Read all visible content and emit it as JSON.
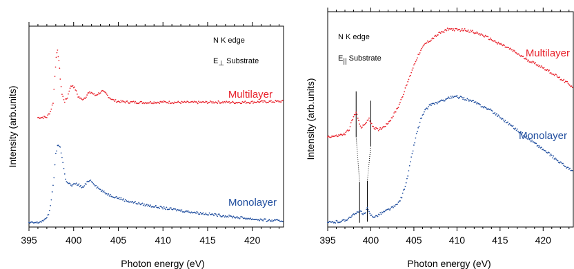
{
  "colors": {
    "multilayer": "#e8202a",
    "monolayer": "#1f4d9e",
    "axis": "#000000"
  },
  "chart_data": [
    {
      "type": "scatter",
      "panel": "left",
      "title": "",
      "xlabel": "Photon energy (eV)",
      "ylabel": "Intensity (arb.units)",
      "xlim": [
        395,
        423.5
      ],
      "ylim": [
        0,
        1
      ],
      "x_ticks": [
        395,
        400,
        405,
        410,
        415,
        420
      ],
      "x_tick_labels": [
        "395",
        "400",
        "405",
        "410",
        "415",
        "420"
      ],
      "annotations": {
        "edge": "N  K edge",
        "pol_prefix": "E",
        "pol_sub": "⊥",
        "pol_suffix": " Substrate"
      },
      "grid": false,
      "series": [
        {
          "name": "Multilayer",
          "color": "#e8202a",
          "x": [
            396.0,
            397.0,
            397.4,
            397.7,
            397.9,
            398.05,
            398.2,
            398.35,
            398.5,
            398.7,
            399.0,
            399.3,
            399.6,
            399.9,
            400.2,
            400.5,
            400.9,
            401.3,
            401.6,
            402.0,
            402.4,
            402.8,
            403.2,
            403.6,
            404.0,
            404.5,
            405.0,
            406.0,
            408.0,
            410.0,
            412.0,
            414.0,
            416.0,
            418.0,
            420.0,
            422.0,
            423.5
          ],
          "y": [
            0.545,
            0.547,
            0.575,
            0.62,
            0.75,
            0.85,
            0.875,
            0.83,
            0.74,
            0.66,
            0.625,
            0.645,
            0.695,
            0.705,
            0.685,
            0.65,
            0.635,
            0.645,
            0.665,
            0.67,
            0.655,
            0.665,
            0.675,
            0.665,
            0.645,
            0.63,
            0.625,
            0.622,
            0.62,
            0.622,
            0.62,
            0.62,
            0.622,
            0.62,
            0.622,
            0.624,
            0.625
          ]
        },
        {
          "name": "Monolayer",
          "color": "#1f4d9e",
          "x": [
            395.0,
            396.0,
            396.8,
            397.2,
            397.5,
            397.8,
            398.0,
            398.2,
            398.5,
            398.8,
            399.1,
            399.4,
            399.8,
            400.2,
            400.6,
            401.0,
            401.4,
            401.8,
            402.2,
            402.6,
            403.0,
            403.5,
            404.0,
            405.0,
            406.0,
            407.0,
            408.0,
            410.0,
            412.0,
            414.0,
            416.0,
            418.0,
            420.0,
            422.0,
            423.5
          ],
          "y": [
            0.02,
            0.022,
            0.035,
            0.065,
            0.13,
            0.25,
            0.36,
            0.405,
            0.4,
            0.32,
            0.235,
            0.22,
            0.205,
            0.215,
            0.21,
            0.195,
            0.215,
            0.235,
            0.22,
            0.2,
            0.185,
            0.17,
            0.16,
            0.145,
            0.13,
            0.12,
            0.11,
            0.095,
            0.082,
            0.07,
            0.06,
            0.05,
            0.04,
            0.032,
            0.03
          ]
        }
      ]
    },
    {
      "type": "scatter",
      "panel": "right",
      "title": "",
      "xlabel": "Photon energy (eV)",
      "ylabel": "Intensity (arb.units)",
      "xlim": [
        395,
        423.5
      ],
      "ylim": [
        0,
        1
      ],
      "x_ticks": [
        395,
        400,
        405,
        410,
        415,
        420
      ],
      "x_tick_labels": [
        "395",
        "400",
        "405",
        "410",
        "415",
        "420"
      ],
      "annotations": {
        "edge": "N  K edge",
        "pol_prefix": "E",
        "pol_sub": "||",
        "pol_suffix": " Substrate"
      },
      "markers_multilayer": [
        398.3,
        400.0
      ],
      "markers_monolayer": [
        398.7,
        399.6
      ],
      "grid": false,
      "series": [
        {
          "name": "Multilayer",
          "color": "#e8202a",
          "x": [
            395.0,
            396.0,
            397.0,
            397.5,
            397.8,
            398.1,
            398.3,
            398.6,
            398.9,
            399.2,
            399.5,
            399.8,
            400.1,
            400.4,
            400.8,
            401.2,
            401.8,
            402.5,
            403.2,
            404.0,
            404.8,
            405.5,
            406.3,
            407.0,
            408.0,
            409.0,
            410.0,
            411.0,
            412.0,
            413.0,
            414.0,
            415.0,
            416.0,
            417.0,
            418.0,
            419.0,
            420.0,
            421.0,
            422.0,
            423.0,
            423.5
          ],
          "y": [
            0.42,
            0.422,
            0.432,
            0.455,
            0.49,
            0.52,
            0.53,
            0.495,
            0.462,
            0.47,
            0.49,
            0.5,
            0.48,
            0.46,
            0.452,
            0.458,
            0.475,
            0.51,
            0.56,
            0.64,
            0.73,
            0.8,
            0.85,
            0.87,
            0.9,
            0.92,
            0.915,
            0.915,
            0.905,
            0.89,
            0.87,
            0.85,
            0.83,
            0.805,
            0.78,
            0.76,
            0.74,
            0.715,
            0.69,
            0.665,
            0.645
          ]
        },
        {
          "name": "Monolayer",
          "color": "#1f4d9e",
          "x": [
            395.0,
            396.0,
            397.0,
            397.5,
            398.0,
            398.4,
            398.7,
            399.0,
            399.3,
            399.6,
            399.9,
            400.2,
            400.6,
            401.0,
            402.0,
            403.0,
            403.6,
            404.2,
            404.8,
            405.3,
            405.8,
            406.3,
            407.0,
            408.0,
            409.0,
            410.0,
            411.0,
            412.0,
            413.0,
            414.0,
            415.0,
            416.0,
            417.0,
            418.0,
            419.0,
            420.0,
            421.0,
            422.0,
            423.0,
            423.5
          ],
          "y": [
            0.02,
            0.024,
            0.03,
            0.045,
            0.055,
            0.065,
            0.08,
            0.06,
            0.06,
            0.085,
            0.06,
            0.05,
            0.05,
            0.06,
            0.08,
            0.1,
            0.14,
            0.22,
            0.34,
            0.43,
            0.5,
            0.54,
            0.57,
            0.58,
            0.6,
            0.605,
            0.595,
            0.58,
            0.56,
            0.54,
            0.51,
            0.48,
            0.45,
            0.42,
            0.39,
            0.36,
            0.33,
            0.3,
            0.27,
            0.255
          ]
        }
      ]
    }
  ]
}
